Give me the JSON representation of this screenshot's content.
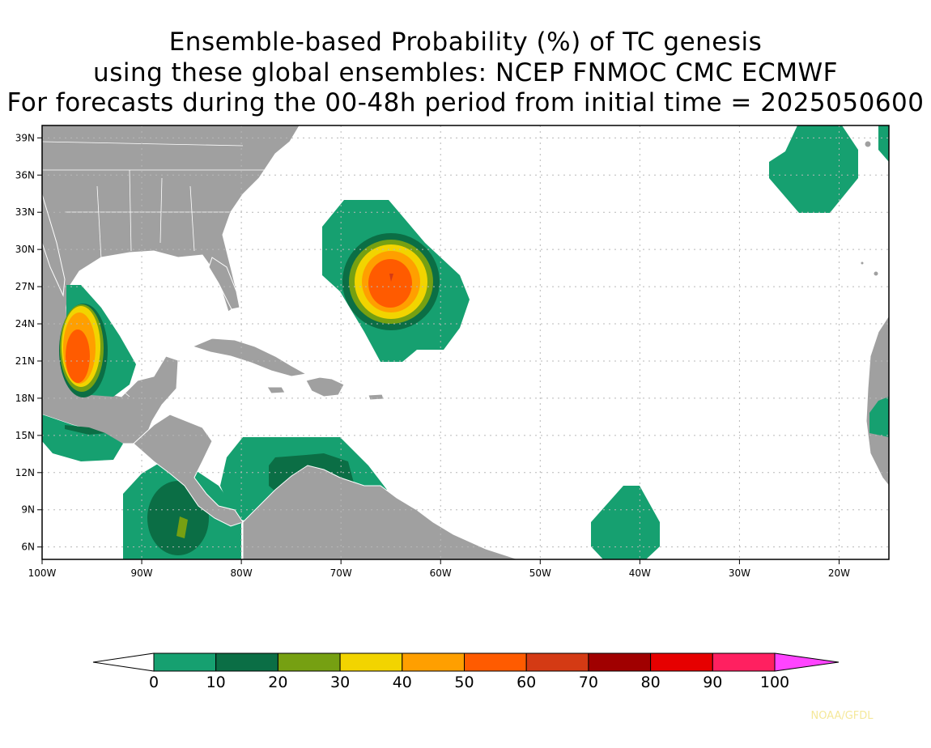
{
  "title": {
    "line1": "Ensemble-based Probability (%) of TC genesis",
    "line2": "using these global ensembles:   NCEP FNMOC CMC ECMWF",
    "line3": "For forecasts during the 00-48h period from initial time = 2025050600"
  },
  "map": {
    "lon_range": [
      -100,
      -15
    ],
    "lat_range": [
      5,
      40
    ],
    "lon_ticks": [
      "100W",
      "90W",
      "80W",
      "70W",
      "60W",
      "50W",
      "40W",
      "30W",
      "20W"
    ],
    "lat_ticks": [
      "39N",
      "36N",
      "33N",
      "30N",
      "27N",
      "24N",
      "21N",
      "18N",
      "15N",
      "12N",
      "9N",
      "6N"
    ],
    "grid": "dotted",
    "land_color": "#a0a0a0",
    "ocean_color": "#ffffff"
  },
  "colorbar": {
    "labels": [
      "0",
      "10",
      "20",
      "30",
      "40",
      "50",
      "60",
      "70",
      "80",
      "90",
      "100"
    ],
    "colors": [
      "#ffffff",
      "#16a070",
      "#0b6e45",
      "#76a012",
      "#f2d400",
      "#ff9f00",
      "#ff5b00",
      "#d43a14",
      "#a00000",
      "#e60000",
      "#ff2060",
      "#ff44ff"
    ]
  },
  "credit": "NOAA/GFDL"
}
